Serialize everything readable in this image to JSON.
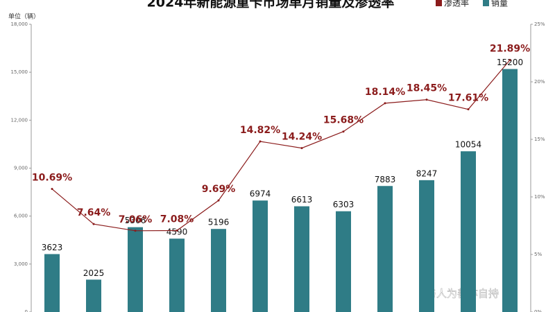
{
  "chart_data": {
    "type": "bar_line",
    "title": "2024年新能源重卡市场单月销量及渗透率",
    "y_label": "单位（辆）",
    "annotation": "与人为善亦自持",
    "categories": [
      null,
      null,
      null,
      null,
      null,
      null,
      null,
      null,
      null,
      null,
      null,
      null
    ],
    "series": [
      {
        "name": "销量",
        "color": "#2f7c86",
        "type": "bar",
        "values": [
          3623,
          2025,
          5306,
          4590,
          5196,
          6974,
          6613,
          6303,
          7883,
          8247,
          10054,
          15200
        ]
      },
      {
        "name": "渗透率",
        "color": "#8b1c1c",
        "type": "line",
        "axis": "y2",
        "values": [
          10.69,
          7.64,
          7.06,
          7.08,
          9.69,
          14.82,
          14.24,
          15.68,
          18.14,
          18.45,
          17.61,
          21.89
        ],
        "value_labels": [
          "10.69%",
          "7.64%",
          "7.06%",
          "7.08%",
          "9.69%",
          "14.82%",
          "14.24%",
          "15.68%",
          "18.14%",
          "18.45%",
          "17.61%",
          "21.89%"
        ]
      }
    ],
    "ylim": [
      0,
      18000
    ],
    "yticks": [
      0,
      {
        "value": 3000,
        "label": "3,000"
      },
      {
        "value": 6000,
        "label": "6,000"
      },
      {
        "value": 9000,
        "label": "9,000"
      },
      {
        "value": 12000,
        "label": "12,000"
      },
      {
        "value": 15000,
        "label": "15,000"
      },
      {
        "value": 18000,
        "label": "18,000"
      }
    ],
    "y2lim": [
      0,
      25
    ],
    "y2ticks": [
      {
        "value": 0,
        "label": "0%"
      },
      {
        "value": 5,
        "label": "5%"
      },
      {
        "value": 10,
        "label": "10%"
      },
      {
        "value": 15,
        "label": "15%"
      },
      {
        "value": 20,
        "label": "20%"
      },
      {
        "value": 25,
        "label": "25%"
      }
    ],
    "legend": "top-right"
  }
}
